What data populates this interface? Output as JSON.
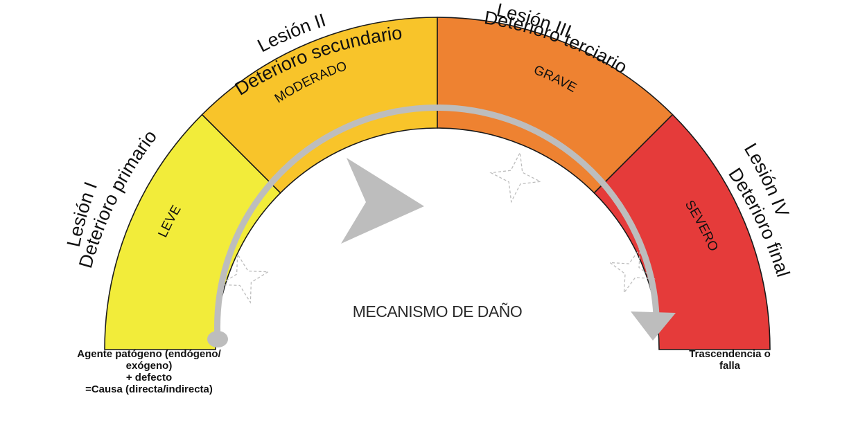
{
  "diagram": {
    "mechanism_label": "MECANISMO DE DAÑO",
    "segments": [
      {
        "severity": "LEVE",
        "lesion": "Lesión I",
        "deterioration": "Deterioro primario",
        "color": "#F2EC3A"
      },
      {
        "severity": "MODERADO",
        "lesion": "Lesión II",
        "deterioration": "Deterioro secundario",
        "color": "#F8C42A"
      },
      {
        "severity": "GRAVE",
        "lesion": "Lesión III",
        "deterioration": "Deterioro terciario",
        "color": "#EE8231"
      },
      {
        "severity": "SEVERO",
        "lesion": "Lesión IV",
        "deterioration": "Deterioro final",
        "color": "#E53B3A"
      }
    ],
    "colors": {
      "outline": "#1a1a1a",
      "arrow": "#BDBDBD",
      "sparkle": "#BDBDBD"
    },
    "start_note": [
      "Agente patógeno (endógeno/",
      "exógeno)",
      "+ defecto",
      "=Causa (directa/indirecta)"
    ],
    "end_note": [
      "Trascendencia o",
      "falla"
    ]
  }
}
